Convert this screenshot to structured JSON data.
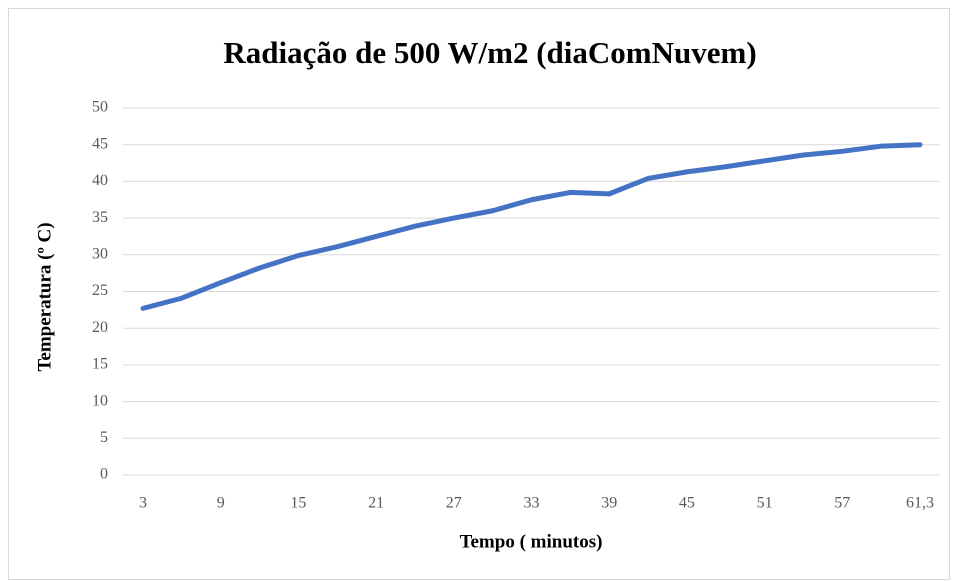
{
  "chart_data": {
    "type": "line",
    "title": "Radiação de 500 W/m2 (diaComNuvem)",
    "x_label": "Tempo ( minutos)",
    "y_label": "Temperatura (º C)",
    "categories": [
      "3",
      null,
      "9",
      null,
      "15",
      null,
      "21",
      null,
      "27",
      null,
      "33",
      null,
      "39",
      null,
      "45",
      null,
      "51",
      null,
      "57",
      null,
      "61,3"
    ],
    "series": [
      {
        "name": "Temperatura",
        "color": "#4472c4",
        "values": [
          22.7,
          24.1,
          26.2,
          28.2,
          29.9,
          31.1,
          32.5,
          33.9,
          35.0,
          36.0,
          37.5,
          38.5,
          38.3,
          40.4,
          41.3,
          42.0,
          42.8,
          43.6,
          44.1,
          44.8,
          45.0
        ]
      }
    ],
    "ylim": [
      0,
      50
    ],
    "yticks": [
      0,
      5,
      10,
      15,
      20,
      25,
      30,
      35,
      40,
      45,
      50
    ],
    "grid": true
  }
}
